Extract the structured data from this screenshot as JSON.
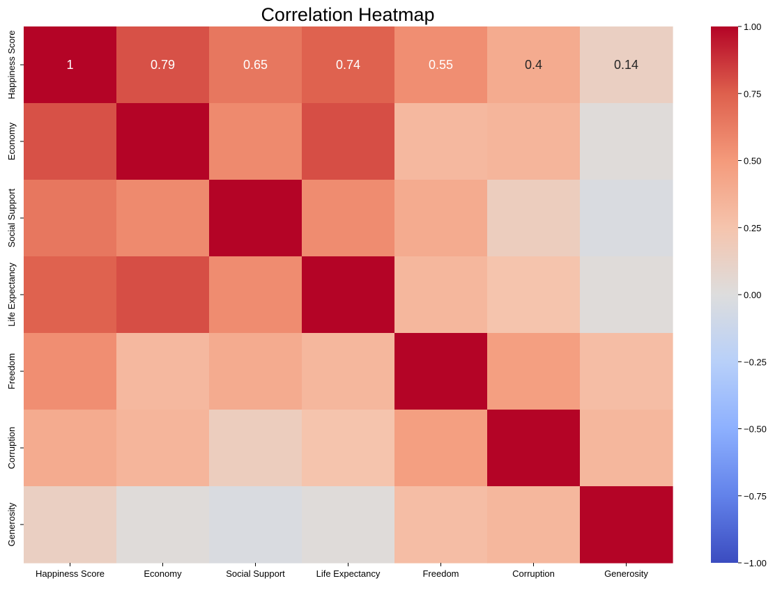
{
  "chart_data": {
    "type": "heatmap",
    "title": "Correlation Heatmap",
    "xlabel": "",
    "ylabel": "",
    "x_categories": [
      "Happiness Score",
      "Economy",
      "Social Support",
      "Life Expectancy",
      "Freedom",
      "Corruption",
      "Generosity"
    ],
    "y_categories": [
      "Happiness Score",
      "Economy",
      "Social Support",
      "Life Expectancy",
      "Freedom",
      "Corruption",
      "Generosity"
    ],
    "values": [
      [
        1.0,
        0.79,
        0.65,
        0.74,
        0.55,
        0.4,
        0.14
      ],
      [
        0.79,
        1.0,
        0.57,
        0.8,
        0.32,
        0.34,
        0.02
      ],
      [
        0.65,
        0.57,
        1.0,
        0.56,
        0.4,
        0.16,
        -0.03
      ],
      [
        0.74,
        0.8,
        0.56,
        1.0,
        0.33,
        0.25,
        0.02
      ],
      [
        0.55,
        0.32,
        0.4,
        0.33,
        1.0,
        0.47,
        0.29
      ],
      [
        0.4,
        0.34,
        0.16,
        0.25,
        0.47,
        1.0,
        0.33
      ],
      [
        0.14,
        0.02,
        -0.03,
        0.02,
        0.29,
        0.33,
        1.0
      ]
    ],
    "annotated_row": 0,
    "annotations": [
      "1",
      "0.79",
      "0.65",
      "0.74",
      "0.55",
      "0.4",
      "0.14"
    ],
    "colormap": "coolwarm",
    "colorbar": {
      "range": [
        -1.0,
        1.0
      ],
      "ticks": [
        1.0,
        0.75,
        0.5,
        0.25,
        0.0,
        -0.25,
        -0.5,
        -0.75,
        -1.0
      ],
      "tick_labels": [
        "1.00",
        "0.75",
        "0.50",
        "0.25",
        "0.00",
        "−0.25",
        "−0.50",
        "−0.75",
        "−1.00"
      ]
    },
    "grid": false,
    "legend": "colorbar-right"
  }
}
